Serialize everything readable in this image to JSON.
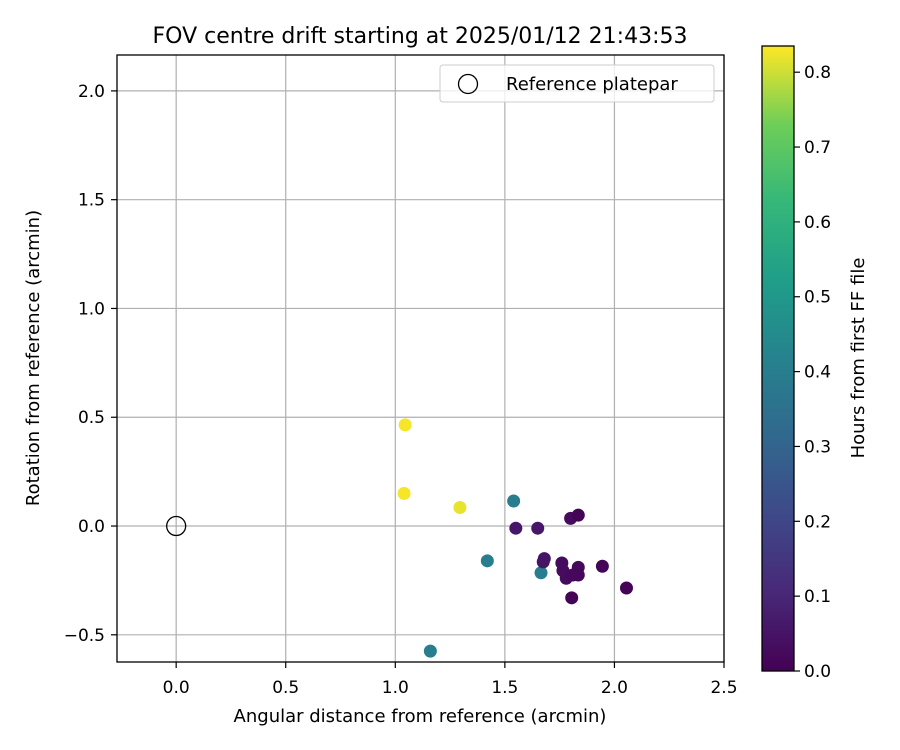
{
  "chart_data": {
    "type": "scatter",
    "title": "FOV centre drift starting at 2025/01/12 21:43:53",
    "xlabel": "Angular distance from reference (arcmin)",
    "ylabel": "Rotation from reference (arcmin)",
    "xlim": [
      -0.27,
      2.5
    ],
    "ylim": [
      -0.625,
      2.165
    ],
    "xticks": [
      0.0,
      0.5,
      1.0,
      1.5,
      2.0,
      2.5
    ],
    "xtick_labels": [
      "0.0",
      "0.5",
      "1.0",
      "1.5",
      "2.0",
      "2.5"
    ],
    "yticks": [
      -0.5,
      0.0,
      0.5,
      1.0,
      1.5,
      2.0
    ],
    "ytick_labels": [
      "−0.5",
      "0.0",
      "0.5",
      "1.0",
      "1.5",
      "2.0"
    ],
    "grid": true,
    "legend": {
      "placement": "upper right",
      "entries": [
        {
          "label": "Reference platepar",
          "marker": "hollow-circle",
          "color": "#000000"
        }
      ]
    },
    "reference_point": {
      "x": 0.0,
      "y": 0.0
    },
    "colormap": "viridis",
    "colorbar": {
      "label": "Hours from first FF file",
      "lim": [
        0.0,
        0.835
      ],
      "ticks": [
        0.0,
        0.1,
        0.2,
        0.3,
        0.4,
        0.5,
        0.6,
        0.7,
        0.8
      ],
      "tick_labels": [
        "0.0",
        "0.1",
        "0.2",
        "0.3",
        "0.4",
        "0.5",
        "0.6",
        "0.7",
        "0.8"
      ]
    },
    "points": [
      {
        "x": 1.045,
        "y": 0.465,
        "hours": 0.83
      },
      {
        "x": 1.04,
        "y": 0.15,
        "hours": 0.83
      },
      {
        "x": 1.295,
        "y": 0.085,
        "hours": 0.82
      },
      {
        "x": 1.54,
        "y": 0.115,
        "hours": 0.4
      },
      {
        "x": 1.42,
        "y": -0.16,
        "hours": 0.4
      },
      {
        "x": 1.665,
        "y": -0.215,
        "hours": 0.4
      },
      {
        "x": 1.16,
        "y": -0.575,
        "hours": 0.4
      },
      {
        "x": 1.55,
        "y": -0.01,
        "hours": 0.06
      },
      {
        "x": 1.65,
        "y": -0.01,
        "hours": 0.06
      },
      {
        "x": 1.68,
        "y": -0.15,
        "hours": 0.05
      },
      {
        "x": 1.675,
        "y": -0.165,
        "hours": 0.05
      },
      {
        "x": 1.8,
        "y": 0.035,
        "hours": 0.03
      },
      {
        "x": 1.835,
        "y": 0.05,
        "hours": 0.01
      },
      {
        "x": 1.76,
        "y": -0.17,
        "hours": 0.03
      },
      {
        "x": 1.765,
        "y": -0.205,
        "hours": 0.03
      },
      {
        "x": 1.78,
        "y": -0.24,
        "hours": 0.03
      },
      {
        "x": 1.835,
        "y": -0.19,
        "hours": 0.02
      },
      {
        "x": 1.835,
        "y": -0.225,
        "hours": 0.02
      },
      {
        "x": 1.81,
        "y": -0.225,
        "hours": 0.02
      },
      {
        "x": 1.945,
        "y": -0.185,
        "hours": 0.01
      },
      {
        "x": 1.805,
        "y": -0.33,
        "hours": 0.01
      },
      {
        "x": 2.055,
        "y": -0.285,
        "hours": 0.01
      }
    ]
  }
}
